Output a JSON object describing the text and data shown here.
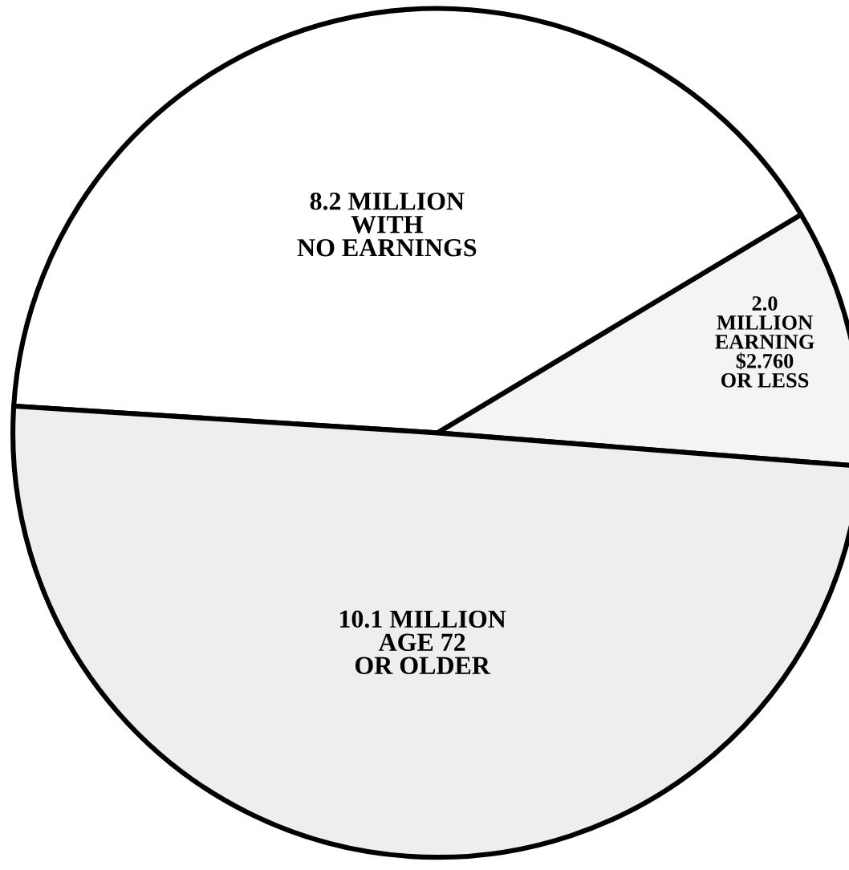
{
  "chart_data": {
    "type": "pie",
    "categories": [
      "2.0\nMILLION\nEARNING\n$2.760\nOR LESS",
      "8.2 MILLION\nWITH\nNO EARNINGS",
      "10.1 MILLION\nAGE 72\nOR OLDER"
    ],
    "values": [
      2.0,
      8.2,
      10.1
    ],
    "colors": [
      "#f4f4f4",
      "#ffffff",
      "#eeeeee"
    ]
  }
}
